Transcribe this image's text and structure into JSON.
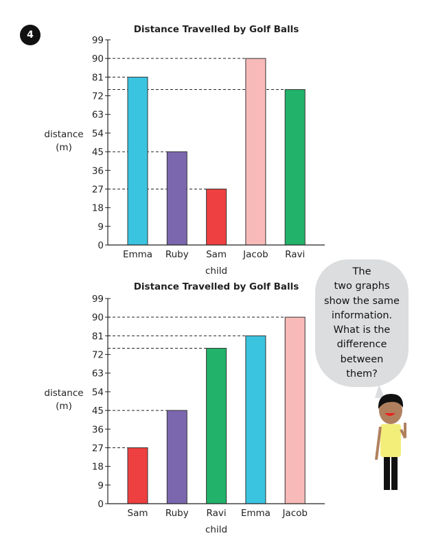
{
  "question_number": "4",
  "speech_bubble": {
    "lines": [
      "The",
      "two graphs",
      "show the same",
      "information.",
      "What is the",
      "difference",
      "between",
      "them?"
    ]
  },
  "chart_data": [
    {
      "type": "bar",
      "title": "Distance Travelled by Golf Balls",
      "xlabel": "child",
      "ylabel": [
        "distance",
        "(m)"
      ],
      "categories": [
        "Emma",
        "Ruby",
        "Sam",
        "Jacob",
        "Ravi"
      ],
      "values": [
        81,
        45,
        27,
        90,
        75
      ],
      "colors": [
        "#3ac4e0",
        "#7b67ae",
        "#ee4040",
        "#f8bab8",
        "#22b26a"
      ],
      "yticks": [
        0,
        9,
        18,
        27,
        36,
        45,
        54,
        63,
        72,
        81,
        90,
        99
      ],
      "ylim": [
        0,
        99
      ],
      "reference_lines": "dashed"
    },
    {
      "type": "bar",
      "title": "Distance Travelled by Golf Balls",
      "xlabel": "child",
      "ylabel": [
        "distance",
        "(m)"
      ],
      "categories": [
        "Sam",
        "Ruby",
        "Ravi",
        "Emma",
        "Jacob"
      ],
      "values": [
        27,
        45,
        75,
        81,
        90
      ],
      "colors": [
        "#ee4040",
        "#7b67ae",
        "#22b26a",
        "#3ac4e0",
        "#f8bab8"
      ],
      "yticks": [
        0,
        9,
        18,
        27,
        36,
        45,
        54,
        63,
        72,
        81,
        90,
        99
      ],
      "ylim": [
        0,
        99
      ],
      "reference_lines": "dashed"
    }
  ]
}
